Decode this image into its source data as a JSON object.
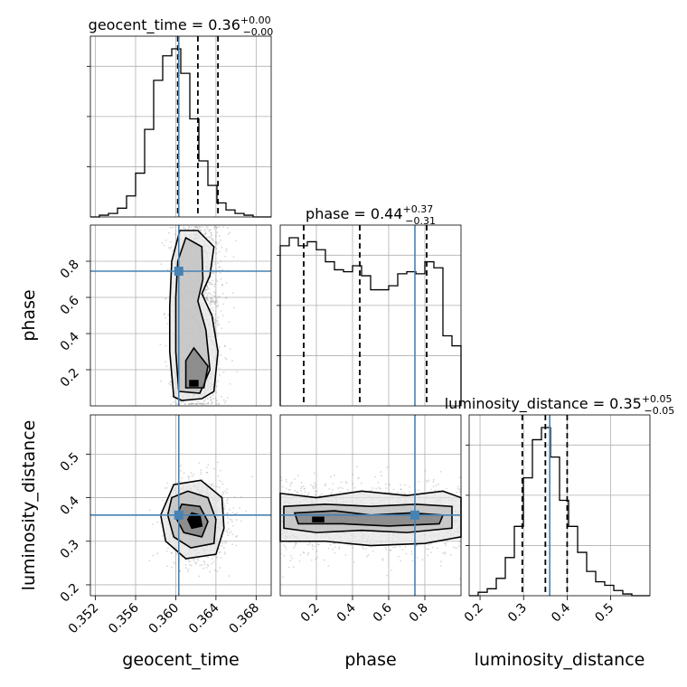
{
  "chart_data": {
    "type": "corner",
    "parameters": [
      "geocent_time",
      "phase",
      "luminosity_distance"
    ],
    "truths": {
      "geocent_time": 0.3603,
      "phase": 0.745,
      "luminosity_distance": 0.36
    },
    "colors": {
      "truth": "#4682b4",
      "hist": "#000000",
      "grid": "#b0b0b0",
      "points": "#8c8c8c"
    },
    "axes": {
      "geocent_time": {
        "range": [
          0.3515,
          0.3695
        ],
        "ticks": [
          "0.352",
          "0.356",
          "0.360",
          "0.364",
          "0.368"
        ],
        "label": "geocent_time"
      },
      "phase": {
        "range": [
          0.0,
          1.0
        ],
        "ticks": [
          "0.2",
          "0.4",
          "0.6",
          "0.8"
        ],
        "label": "phase"
      },
      "luminosity_distance": {
        "range": [
          0.175,
          0.59
        ],
        "ticks": [
          "0.2",
          "0.3",
          "0.4",
          "0.5"
        ],
        "label": "luminosity_distance"
      }
    },
    "titles": [
      {
        "param": "geocent_time",
        "text": "geocent_time = 0.36",
        "plus": "+0.00",
        "minus": "−0.00"
      },
      {
        "param": "phase",
        "text": "phase = 0.44",
        "plus": "+0.37",
        "minus": "−0.31"
      },
      {
        "param": "luminosity_distance",
        "text": "luminosity_distance = 0.35",
        "plus": "+0.05",
        "minus": "−0.05"
      }
    ],
    "quantiles": {
      "geocent_time": [
        0.3602,
        0.3622,
        0.3642
      ],
      "phase": [
        0.13,
        0.44,
        0.81
      ],
      "luminosity_distance": [
        0.297,
        0.35,
        0.4
      ]
    },
    "histograms": {
      "geocent_time": {
        "edges_range": [
          0.3515,
          0.3695
        ],
        "bins": 20,
        "counts": [
          0,
          1,
          2,
          5,
          12,
          25,
          50,
          78,
          92,
          96,
          82,
          56,
          32,
          18,
          8,
          4,
          2,
          1,
          0,
          0
        ]
      },
      "phase": {
        "edges_range": [
          0.0,
          1.0
        ],
        "bins": 20,
        "counts": [
          80,
          84,
          80,
          82,
          78,
          72,
          68,
          67,
          70,
          65,
          58,
          58,
          60,
          66,
          67,
          66,
          72,
          69,
          35,
          30
        ]
      },
      "luminosity_distance": {
        "edges_range": [
          0.175,
          0.59
        ],
        "bins": 20,
        "counts": [
          0,
          2,
          4,
          10,
          22,
          40,
          68,
          90,
          97,
          80,
          55,
          40,
          25,
          14,
          8,
          6,
          3,
          1,
          0,
          0
        ]
      }
    },
    "contours": [
      {
        "x": "geocent_time",
        "y": "phase",
        "levels": [
          [
            [
              0.3598,
              0.05
            ],
            [
              0.3606,
              0.03
            ],
            [
              0.3626,
              0.04
            ],
            [
              0.3638,
              0.08
            ],
            [
              0.3642,
              0.3
            ],
            [
              0.3636,
              0.5
            ],
            [
              0.3626,
              0.62
            ],
            [
              0.3634,
              0.72
            ],
            [
              0.3638,
              0.88
            ],
            [
              0.3622,
              0.97
            ],
            [
              0.3604,
              0.97
            ],
            [
              0.3596,
              0.8
            ],
            [
              0.3594,
              0.55
            ],
            [
              0.3594,
              0.3
            ]
          ],
          [
            [
              0.3603,
              0.08
            ],
            [
              0.3624,
              0.07
            ],
            [
              0.3634,
              0.2
            ],
            [
              0.363,
              0.42
            ],
            [
              0.3622,
              0.58
            ],
            [
              0.3627,
              0.7
            ],
            [
              0.3626,
              0.88
            ],
            [
              0.361,
              0.93
            ],
            [
              0.3602,
              0.8
            ],
            [
              0.36,
              0.6
            ],
            [
              0.36,
              0.3
            ]
          ],
          [
            [
              0.361,
              0.1
            ],
            [
              0.3628,
              0.1
            ],
            [
              0.3632,
              0.22
            ],
            [
              0.3618,
              0.32
            ],
            [
              0.361,
              0.25
            ]
          ],
          [
            [
              0.3614,
              0.11
            ],
            [
              0.3622,
              0.11
            ],
            [
              0.3622,
              0.14
            ],
            [
              0.3614,
              0.14
            ]
          ]
        ]
      },
      {
        "x": "geocent_time",
        "y": "luminosity_distance",
        "levels": [
          [
            [
              0.3585,
              0.36
            ],
            [
              0.359,
              0.3
            ],
            [
              0.361,
              0.26
            ],
            [
              0.364,
              0.27
            ],
            [
              0.3648,
              0.33
            ],
            [
              0.3646,
              0.4
            ],
            [
              0.3625,
              0.44
            ],
            [
              0.3598,
              0.43
            ]
          ],
          [
            [
              0.3592,
              0.36
            ],
            [
              0.3598,
              0.31
            ],
            [
              0.3615,
              0.285
            ],
            [
              0.3638,
              0.295
            ],
            [
              0.364,
              0.35
            ],
            [
              0.3632,
              0.4
            ],
            [
              0.3612,
              0.415
            ],
            [
              0.3596,
              0.4
            ]
          ],
          [
            [
              0.36,
              0.355
            ],
            [
              0.3608,
              0.32
            ],
            [
              0.3626,
              0.31
            ],
            [
              0.3632,
              0.345
            ],
            [
              0.3624,
              0.38
            ],
            [
              0.3606,
              0.385
            ]
          ],
          [
            [
              0.3612,
              0.35
            ],
            [
              0.3616,
              0.33
            ],
            [
              0.3626,
              0.335
            ],
            [
              0.3624,
              0.36
            ],
            [
              0.3616,
              0.365
            ]
          ]
        ]
      },
      {
        "x": "phase",
        "y": "luminosity_distance",
        "levels": [
          [
            [
              0.0,
              0.41
            ],
            [
              0.2,
              0.4
            ],
            [
              0.45,
              0.415
            ],
            [
              0.7,
              0.405
            ],
            [
              0.9,
              0.415
            ],
            [
              1.0,
              0.4
            ],
            [
              1.0,
              0.31
            ],
            [
              0.8,
              0.295
            ],
            [
              0.5,
              0.29
            ],
            [
              0.25,
              0.3
            ],
            [
              0.0,
              0.3
            ]
          ],
          [
            [
              0.02,
              0.38
            ],
            [
              0.25,
              0.385
            ],
            [
              0.5,
              0.38
            ],
            [
              0.75,
              0.385
            ],
            [
              0.95,
              0.38
            ],
            [
              0.95,
              0.33
            ],
            [
              0.7,
              0.32
            ],
            [
              0.45,
              0.325
            ],
            [
              0.2,
              0.32
            ],
            [
              0.02,
              0.33
            ]
          ],
          [
            [
              0.08,
              0.365
            ],
            [
              0.3,
              0.37
            ],
            [
              0.5,
              0.36
            ],
            [
              0.72,
              0.365
            ],
            [
              0.9,
              0.36
            ],
            [
              0.88,
              0.34
            ],
            [
              0.6,
              0.335
            ],
            [
              0.35,
              0.34
            ],
            [
              0.1,
              0.34
            ]
          ],
          [
            [
              0.18,
              0.355
            ],
            [
              0.24,
              0.355
            ],
            [
              0.24,
              0.345
            ],
            [
              0.18,
              0.345
            ]
          ]
        ]
      }
    ]
  }
}
